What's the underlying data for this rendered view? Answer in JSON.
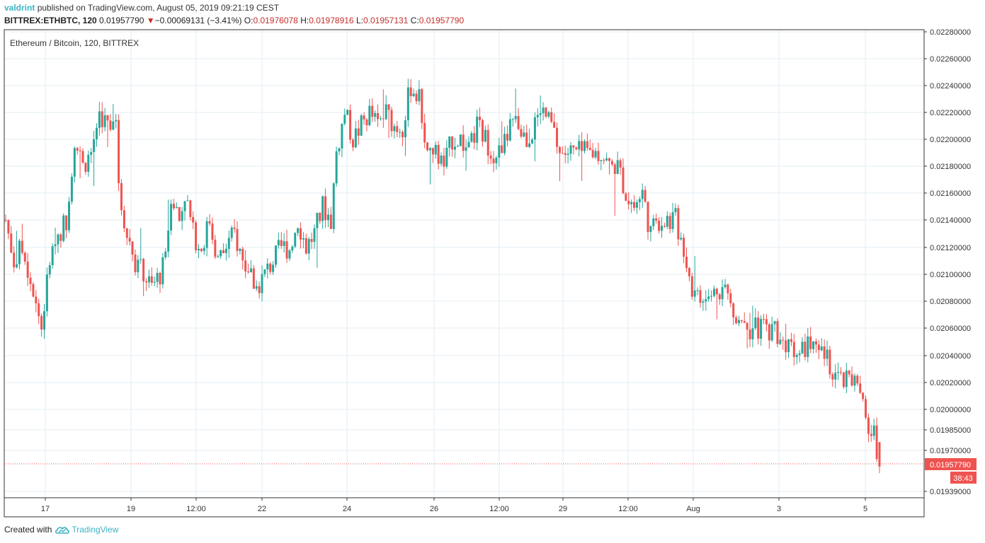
{
  "header": {
    "author": "valdrint",
    "published_text": "published on TradingView.com, August 05, 2019 09:21:19 CEST",
    "symbol": "BITTREX:ETHBTC, 120",
    "last_price": "0.01957790",
    "change_arrow": "▼",
    "change": "−0.00069131 (−3.41%)",
    "o_label": "O:",
    "o_value": "0.01976078",
    "h_label": "H:",
    "h_value": "0.01978916",
    "l_label": "L:",
    "l_value": "0.01957131",
    "c_label": "C:",
    "c_value": "0.01957790"
  },
  "footer": {
    "created_with": "Created with",
    "brand": "TradingView"
  },
  "colors": {
    "up": "#26a69a",
    "down": "#ef5350",
    "grid": "#e3eef3",
    "accent": "#3bb3c3",
    "price_line": "#ef5350"
  },
  "chart_data": {
    "type": "candlestick",
    "title": "Ethereum / Bitcoin, 120, BITTREX",
    "x_ticks": [
      "17",
      "19",
      "12:00",
      "22",
      "24",
      "26",
      "12:00",
      "29",
      "12:00",
      "Aug",
      "3",
      "5"
    ],
    "y_ticks": [
      "0.02280000",
      "0.02260000",
      "0.02240000",
      "0.02220000",
      "0.02200000",
      "0.02180000",
      "0.02160000",
      "0.02140000",
      "0.02120000",
      "0.02100000",
      "0.02080000",
      "0.02060000",
      "0.02040000",
      "0.02020000",
      "0.02000000",
      "0.01985000",
      "0.01970000",
      "0.01939000"
    ],
    "last_price_label": "0.01957790",
    "countdown_label": "38:43",
    "close_path": [
      [
        0,
        0.0214
      ],
      [
        3,
        0.0211
      ],
      [
        6,
        0.0212
      ],
      [
        10,
        0.0209
      ],
      [
        12,
        0.0207
      ],
      [
        13,
        0.0206
      ],
      [
        16,
        0.0211
      ],
      [
        19,
        0.0213
      ],
      [
        22,
        0.0214
      ],
      [
        25,
        0.022
      ],
      [
        28,
        0.0218
      ],
      [
        31,
        0.0219
      ],
      [
        34,
        0.0222
      ],
      [
        37,
        0.0221
      ],
      [
        40,
        0.0222
      ],
      [
        41,
        0.0216
      ],
      [
        44,
        0.0213
      ],
      [
        47,
        0.0211
      ],
      [
        50,
        0.021
      ],
      [
        53,
        0.0209
      ],
      [
        56,
        0.021
      ],
      [
        58,
        0.0211
      ],
      [
        60,
        0.0216
      ],
      [
        63,
        0.0214
      ],
      [
        65,
        0.0216
      ],
      [
        68,
        0.0213
      ],
      [
        71,
        0.0212
      ],
      [
        74,
        0.0214
      ],
      [
        77,
        0.0211
      ],
      [
        80,
        0.0212
      ],
      [
        83,
        0.0213
      ],
      [
        86,
        0.0211
      ],
      [
        89,
        0.021
      ],
      [
        91,
        0.0209
      ],
      [
        94,
        0.021
      ],
      [
        97,
        0.0211
      ],
      [
        100,
        0.0212
      ],
      [
        103,
        0.0212
      ],
      [
        106,
        0.0214
      ],
      [
        109,
        0.0212
      ],
      [
        112,
        0.0213
      ],
      [
        115,
        0.0215
      ],
      [
        118,
        0.0214
      ],
      [
        120,
        0.0219
      ],
      [
        123,
        0.0222
      ],
      [
        126,
        0.022
      ],
      [
        129,
        0.0221
      ],
      [
        132,
        0.0222
      ],
      [
        135,
        0.0221
      ],
      [
        138,
        0.0222
      ],
      [
        141,
        0.0221
      ],
      [
        144,
        0.0221
      ],
      [
        147,
        0.0224
      ],
      [
        150,
        0.0223
      ],
      [
        153,
        0.0219
      ],
      [
        156,
        0.0219
      ],
      [
        159,
        0.0218
      ],
      [
        162,
        0.022
      ],
      [
        165,
        0.022
      ],
      [
        168,
        0.0219
      ],
      [
        171,
        0.0221
      ],
      [
        174,
        0.022
      ],
      [
        177,
        0.0219
      ],
      [
        180,
        0.0219
      ],
      [
        183,
        0.0221
      ],
      [
        186,
        0.0221
      ],
      [
        189,
        0.022
      ],
      [
        192,
        0.0221
      ],
      [
        195,
        0.0222
      ],
      [
        198,
        0.0221
      ],
      [
        201,
        0.0219
      ],
      [
        204,
        0.0219
      ],
      [
        207,
        0.0219
      ],
      [
        210,
        0.0219
      ],
      [
        213,
        0.0219
      ],
      [
        216,
        0.0219
      ],
      [
        219,
        0.0218
      ],
      [
        222,
        0.0218
      ],
      [
        225,
        0.0216
      ],
      [
        228,
        0.0215
      ],
      [
        231,
        0.0216
      ],
      [
        234,
        0.0213
      ],
      [
        237,
        0.0214
      ],
      [
        240,
        0.0214
      ],
      [
        243,
        0.0214
      ],
      [
        246,
        0.0212
      ],
      [
        249,
        0.0209
      ],
      [
        252,
        0.0208
      ],
      [
        255,
        0.0208
      ],
      [
        258,
        0.0209
      ],
      [
        261,
        0.0209
      ],
      [
        264,
        0.0207
      ],
      [
        267,
        0.0207
      ],
      [
        270,
        0.0206
      ],
      [
        273,
        0.0206
      ],
      [
        276,
        0.0206
      ],
      [
        279,
        0.0206
      ],
      [
        282,
        0.0205
      ],
      [
        285,
        0.0205
      ],
      [
        288,
        0.0204
      ],
      [
        291,
        0.0205
      ],
      [
        294,
        0.0204
      ],
      [
        297,
        0.0204
      ],
      [
        300,
        0.0203
      ],
      [
        303,
        0.0202
      ],
      [
        306,
        0.0202
      ],
      [
        309,
        0.0202
      ],
      [
        312,
        0.0199
      ],
      [
        315,
        0.0198
      ],
      [
        317,
        0.01958
      ]
    ]
  }
}
